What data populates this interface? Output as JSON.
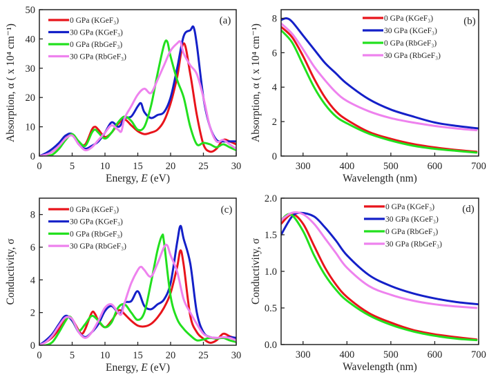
{
  "colors": {
    "red": "#e8141b",
    "blue": "#1420c8",
    "green": "#22e01e",
    "pink": "#ee82ee"
  },
  "chart_data": [
    {
      "type": "line",
      "panel_tag": "(a)",
      "xlabel_parts": [
        "Energy, ",
        "E",
        " (eV)"
      ],
      "ylabel": "Absorption, α ( x 10⁴ cm⁻¹)",
      "xlim": [
        0,
        30
      ],
      "ylim": [
        0,
        50
      ],
      "xticks": [
        0,
        5,
        10,
        15,
        20,
        25,
        30
      ],
      "xtick_labels": [
        "0",
        "5",
        "10",
        "15",
        "20",
        "25",
        "30"
      ],
      "yticks": [
        0,
        10,
        20,
        30,
        40,
        50
      ],
      "ytick_labels": [
        "0",
        "10",
        "20",
        "30",
        "40",
        "50"
      ],
      "legend": "top-left",
      "series": [
        {
          "name": "0 GPa (KGeF₃)",
          "color": "red",
          "x": [
            0,
            1,
            2,
            3,
            4,
            5,
            6,
            7,
            8,
            8.5,
            9,
            10,
            11,
            12,
            13,
            14,
            15,
            16,
            17,
            18,
            19,
            20,
            21,
            22,
            23,
            24,
            25,
            26,
            27,
            28,
            29,
            30
          ],
          "y": [
            0,
            0.5,
            1.5,
            3.5,
            6,
            7.5,
            4.5,
            4,
            9,
            10,
            9,
            6.5,
            8,
            11,
            12.5,
            10.5,
            8.5,
            7.5,
            8,
            9,
            12,
            18,
            27,
            38.5,
            28,
            14,
            4,
            1.5,
            2.5,
            5.5,
            5,
            4
          ]
        },
        {
          "name": "30 GPa (KGeF₃)",
          "color": "blue",
          "x": [
            0,
            1,
            2,
            3,
            4,
            5,
            6,
            7,
            8,
            9,
            10,
            11,
            12,
            12.5,
            13,
            14,
            15,
            15.5,
            16,
            17,
            18,
            19,
            20,
            21,
            22,
            23,
            23.5,
            24,
            25,
            26,
            27,
            28,
            29,
            30
          ],
          "y": [
            0,
            1,
            2.5,
            4.5,
            7,
            7.5,
            4,
            2.5,
            3.5,
            5,
            8,
            11.5,
            10,
            11,
            13,
            13.5,
            17,
            18,
            15,
            13,
            14,
            15,
            20,
            30,
            41,
            43,
            44,
            38,
            20,
            10,
            5.5,
            5,
            5,
            5
          ]
        },
        {
          "name": "0 GPa (RbGeF₃)",
          "color": "green",
          "x": [
            0,
            1,
            2,
            3,
            4,
            5,
            6,
            7,
            8,
            8.5,
            9,
            10,
            11,
            12,
            13,
            14,
            15,
            16,
            17,
            18,
            19,
            19.5,
            20,
            21,
            22,
            23,
            24,
            25,
            26,
            27,
            28,
            29,
            30
          ],
          "y": [
            0,
            0,
            0.5,
            2.5,
            5.5,
            7.5,
            5,
            3.5,
            8,
            9,
            8,
            6,
            8,
            11.5,
            13.5,
            12,
            9,
            10,
            17,
            28,
            38,
            39,
            34,
            26,
            20,
            10,
            4,
            4.5,
            4,
            3,
            4,
            3,
            2
          ]
        },
        {
          "name": "30 GPa (RbGeF₃)",
          "color": "pink",
          "x": [
            0,
            1,
            2,
            3,
            4,
            5,
            6,
            7,
            8,
            9,
            10,
            11,
            12,
            12.5,
            13,
            14,
            15,
            16,
            17,
            18,
            19,
            20,
            21,
            21.5,
            22,
            23,
            24,
            25,
            26,
            27,
            28,
            29,
            30
          ],
          "y": [
            0,
            0.5,
            1.5,
            3.5,
            6,
            7,
            4,
            2,
            3,
            5.5,
            8,
            10.5,
            9,
            8.5,
            13,
            17,
            21,
            23,
            21.5,
            26,
            31,
            36,
            38.5,
            39,
            35,
            31,
            28,
            20,
            10,
            5,
            5.5,
            4,
            2.5
          ]
        }
      ]
    },
    {
      "type": "line",
      "panel_tag": "(b)",
      "xlabel_parts": [
        "Wavelength (nm)",
        "",
        ""
      ],
      "ylabel": "Absorption, α ( x 10⁴ cm⁻¹)",
      "xlim": [
        250,
        700
      ],
      "ylim": [
        0,
        8.5
      ],
      "xticks": [
        300,
        400,
        500,
        600,
        700
      ],
      "xtick_labels": [
        "300",
        "400",
        "500",
        "600",
        "700"
      ],
      "yticks": [
        0,
        2,
        4,
        6,
        8
      ],
      "ytick_labels": [
        "0",
        "2",
        "4",
        "6",
        "8"
      ],
      "legend": "top-right",
      "series": [
        {
          "name": "0 GPa (KGeF₃)",
          "color": "red",
          "x": [
            250,
            275,
            300,
            325,
            350,
            375,
            400,
            450,
            500,
            550,
            600,
            650,
            695
          ],
          "y": [
            7.5,
            6.9,
            5.8,
            4.5,
            3.4,
            2.6,
            2.1,
            1.4,
            1.0,
            0.7,
            0.5,
            0.35,
            0.25
          ]
        },
        {
          "name": "30 GPa (KGeF₃)",
          "color": "blue",
          "x": [
            250,
            262,
            275,
            300,
            325,
            350,
            375,
            400,
            450,
            500,
            550,
            600,
            650,
            700
          ],
          "y": [
            7.9,
            8.0,
            7.8,
            7.0,
            6.2,
            5.4,
            4.8,
            4.2,
            3.3,
            2.7,
            2.3,
            1.95,
            1.75,
            1.6
          ]
        },
        {
          "name": "0 GPa (RbGeF₃)",
          "color": "green",
          "x": [
            250,
            275,
            300,
            325,
            350,
            375,
            400,
            450,
            500,
            550,
            600,
            650,
            695
          ],
          "y": [
            7.3,
            6.6,
            5.3,
            4.0,
            3.0,
            2.3,
            1.9,
            1.3,
            0.9,
            0.6,
            0.42,
            0.3,
            0.2
          ]
        },
        {
          "name": "30 GPa (RbGeF₃)",
          "color": "pink",
          "x": [
            250,
            275,
            300,
            325,
            350,
            375,
            400,
            450,
            500,
            550,
            600,
            650,
            695
          ],
          "y": [
            7.7,
            7.1,
            6.2,
            5.2,
            4.4,
            3.7,
            3.2,
            2.6,
            2.2,
            1.95,
            1.75,
            1.6,
            1.5
          ]
        }
      ]
    },
    {
      "type": "line",
      "panel_tag": "(c)",
      "xlabel_parts": [
        "Energy, ",
        "E",
        " (eV)"
      ],
      "ylabel": "Conductivity, σ",
      "xlim": [
        0,
        30
      ],
      "ylim": [
        0,
        9
      ],
      "xticks": [
        0,
        5,
        10,
        15,
        20,
        25,
        30
      ],
      "xtick_labels": [
        "0",
        "5",
        "10",
        "15",
        "20",
        "25",
        "30"
      ],
      "yticks": [
        0,
        2,
        4,
        6,
        8
      ],
      "ytick_labels": [
        "0",
        "2",
        "4",
        "6",
        "8"
      ],
      "legend": "top-left",
      "series": [
        {
          "name": "0 GPa (KGeF₃)",
          "color": "red",
          "x": [
            0,
            1,
            2,
            3,
            4,
            4.5,
            5,
            6,
            6.5,
            7,
            8,
            8.5,
            9,
            10,
            11,
            12,
            12.5,
            13,
            14,
            15,
            16,
            17,
            18,
            19,
            20,
            21,
            21.5,
            22,
            23,
            24,
            25,
            26,
            27,
            28,
            29,
            30
          ],
          "y": [
            0,
            0.2,
            0.5,
            1.0,
            1.6,
            1.75,
            1.6,
            0.9,
            0.7,
            1.0,
            2.0,
            1.9,
            1.5,
            1.1,
            1.5,
            2.1,
            2.1,
            1.9,
            1.5,
            1.2,
            1.15,
            1.3,
            1.7,
            2.3,
            3.2,
            4.8,
            5.8,
            4.9,
            1.8,
            0.8,
            0.4,
            0.15,
            0.3,
            0.7,
            0.55,
            0.4
          ]
        },
        {
          "name": "30 GPa (KGeF₃)",
          "color": "blue",
          "x": [
            0,
            1,
            2,
            3,
            4,
            5,
            6,
            7,
            8,
            9,
            10,
            11,
            12,
            12.5,
            13,
            14,
            15,
            16,
            17,
            18,
            19,
            20,
            21,
            21.5,
            22,
            23,
            24,
            25,
            26,
            27,
            28,
            29,
            30
          ],
          "y": [
            0,
            0.3,
            0.7,
            1.3,
            1.8,
            1.5,
            0.8,
            0.5,
            0.8,
            1.3,
            2.1,
            2.4,
            2.0,
            2.0,
            2.6,
            2.7,
            3.3,
            2.4,
            2.2,
            2.5,
            2.8,
            3.8,
            6.3,
            7.3,
            6.5,
            5.0,
            2.0,
            0.8,
            0.5,
            0.45,
            0.45,
            0.5,
            0.45
          ]
        },
        {
          "name": "0 GPa (RbGeF₃)",
          "color": "green",
          "x": [
            0,
            1,
            2,
            3,
            4,
            4.5,
            5,
            6,
            7,
            8,
            9,
            10,
            11,
            12,
            13,
            14,
            15,
            16,
            17,
            18,
            18.7,
            19,
            20,
            21,
            22,
            23,
            24,
            25,
            26,
            27,
            28,
            29,
            30
          ],
          "y": [
            0,
            0,
            0.2,
            0.8,
            1.5,
            1.75,
            1.6,
            0.9,
            1.3,
            1.8,
            1.5,
            1.1,
            1.4,
            2.3,
            2.5,
            2.0,
            1.55,
            2.0,
            3.8,
            5.8,
            6.7,
            6.3,
            3.0,
            1.6,
            1.0,
            0.6,
            0.3,
            0.35,
            0.45,
            0.4,
            0.45,
            0.3,
            0.2
          ]
        },
        {
          "name": "30 GPa (RbGeF₃)",
          "color": "pink",
          "x": [
            0,
            1,
            2,
            3,
            4,
            5,
            6,
            7,
            8,
            9,
            10,
            11,
            12,
            12.5,
            13,
            14,
            15,
            15.5,
            16,
            17,
            18,
            19,
            19.5,
            20,
            21,
            22,
            23,
            24,
            25,
            26,
            27,
            28,
            29,
            30
          ],
          "y": [
            0,
            0.2,
            0.6,
            1.2,
            1.7,
            1.6,
            0.8,
            0.45,
            0.8,
            1.5,
            2.3,
            2.5,
            2.0,
            1.9,
            2.6,
            3.8,
            4.6,
            4.8,
            4.6,
            4.2,
            5.0,
            6.0,
            6.1,
            5.5,
            4.5,
            2.8,
            2.0,
            1.3,
            0.7,
            0.5,
            0.45,
            0.5,
            0.45,
            0.3
          ]
        }
      ]
    },
    {
      "type": "line",
      "panel_tag": "(d)",
      "xlabel_parts": [
        "Wavelength (nm)",
        "",
        ""
      ],
      "ylabel": "Conductivity, σ",
      "xlim": [
        250,
        700
      ],
      "ylim": [
        0,
        2
      ],
      "xticks": [
        300,
        400,
        500,
        600,
        700
      ],
      "xtick_labels": [
        "300",
        "400",
        "500",
        "600",
        "700"
      ],
      "yticks": [
        0,
        0.5,
        1,
        1.5,
        2
      ],
      "ytick_labels": [
        "0.0",
        "0.5",
        "1.0",
        "1.5",
        "2.0"
      ],
      "legend": "top-right",
      "series": [
        {
          "name": "0 GPa (KGeF₃)",
          "color": "red",
          "x": [
            250,
            275,
            300,
            325,
            350,
            375,
            400,
            450,
            500,
            550,
            600,
            650,
            695
          ],
          "y": [
            1.65,
            1.78,
            1.65,
            1.35,
            1.05,
            0.82,
            0.65,
            0.43,
            0.3,
            0.2,
            0.14,
            0.1,
            0.07
          ]
        },
        {
          "name": "30 GPa (KGeF₃)",
          "color": "blue",
          "x": [
            250,
            275,
            295,
            325,
            350,
            375,
            400,
            450,
            500,
            550,
            600,
            650,
            700
          ],
          "y": [
            1.5,
            1.75,
            1.8,
            1.75,
            1.6,
            1.42,
            1.22,
            0.95,
            0.8,
            0.7,
            0.63,
            0.58,
            0.55
          ]
        },
        {
          "name": "0 GPa (RbGeF₃)",
          "color": "green",
          "x": [
            250,
            272,
            300,
            325,
            350,
            375,
            400,
            450,
            500,
            550,
            600,
            650,
            695
          ],
          "y": [
            1.7,
            1.78,
            1.55,
            1.22,
            0.95,
            0.75,
            0.6,
            0.4,
            0.27,
            0.18,
            0.12,
            0.08,
            0.06
          ]
        },
        {
          "name": "30 GPa (RbGeF₃)",
          "color": "pink",
          "x": [
            250,
            275,
            300,
            325,
            350,
            375,
            400,
            450,
            500,
            550,
            600,
            650,
            695
          ],
          "y": [
            1.7,
            1.8,
            1.78,
            1.65,
            1.45,
            1.25,
            1.05,
            0.8,
            0.68,
            0.6,
            0.55,
            0.52,
            0.5
          ]
        }
      ]
    }
  ]
}
